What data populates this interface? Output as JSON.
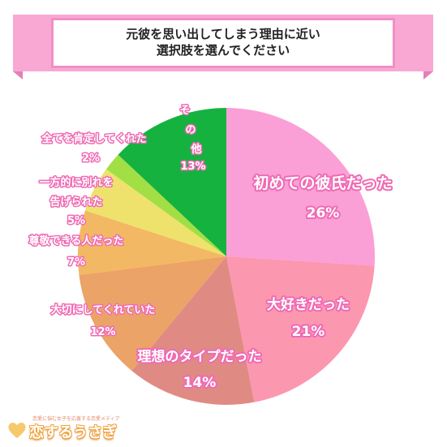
{
  "title": {
    "line1": "元彼を思い出してしまう理由に近い",
    "line2": "選択肢を選んでください"
  },
  "chart_data": {
    "type": "pie",
    "start_angle": "12 o'clock",
    "direction": "clockwise",
    "slices": [
      {
        "label": "初めての彼氏だった",
        "value": 26,
        "value_label": "26%",
        "color": "#fb9fd7"
      },
      {
        "label": "大好きだった",
        "value": 21,
        "value_label": "21%",
        "color": "#fc97b0"
      },
      {
        "label": "理想のタイプだった",
        "value": 14,
        "value_label": "14%",
        "color": "#e08a84"
      },
      {
        "label": "大切にしてくれていた",
        "value": 12,
        "value_label": "12%",
        "color": "#eba367"
      },
      {
        "label": "尊敬できる人だった",
        "value": 7,
        "value_label": "7%",
        "color": "#f3b863"
      },
      {
        "label": "一方的に別れを告げられた",
        "value": 5,
        "value_label": "5%",
        "color": "#eee26c"
      },
      {
        "label": "全てを肯定してくれた",
        "value": 2,
        "value_label": "2%",
        "color": "#a2df45"
      },
      {
        "label": "その他",
        "value": 13,
        "value_label": "13%",
        "color": "#16b23f"
      }
    ]
  },
  "colors": {
    "banner": "#f8a8d3",
    "banner_border": "#f28fc4",
    "label_outline": "#f06ab4"
  },
  "logo": {
    "tagline": "恋愛に悩む女子を応援する恋愛メディア",
    "name": "恋するうさぎ",
    "icon": "heart-icon"
  }
}
